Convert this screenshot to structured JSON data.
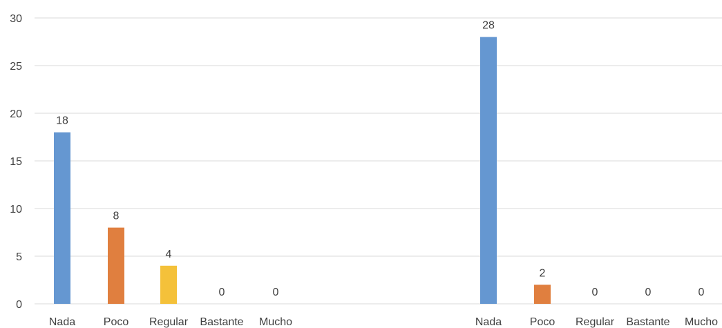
{
  "chart_data": {
    "type": "bar",
    "ylim": [
      0,
      30
    ],
    "yticks": [
      "0",
      "5",
      "10",
      "15",
      "20",
      "25",
      "30"
    ],
    "grid": true,
    "groups": [
      {
        "categories": [
          "Nada",
          "Poco",
          "Regular",
          "Bastante",
          "Mucho"
        ],
        "values": [
          18,
          8,
          4,
          0,
          0
        ],
        "colors": [
          "#6597d1",
          "#e07f3f",
          "#f4c13a",
          "#a5a5a5",
          "#4472c4"
        ]
      },
      {
        "categories": [
          "Nada",
          "Poco",
          "Regular",
          "Bastante",
          "Mucho"
        ],
        "values": [
          28,
          2,
          0,
          0,
          0
        ],
        "colors": [
          "#6597d1",
          "#e07f3f",
          "#f4c13a",
          "#a5a5a5",
          "#4472c4"
        ]
      }
    ]
  },
  "colors": {
    "grid": "#d9d9d9",
    "axis": "#d9d9d9",
    "text": "#404040"
  }
}
